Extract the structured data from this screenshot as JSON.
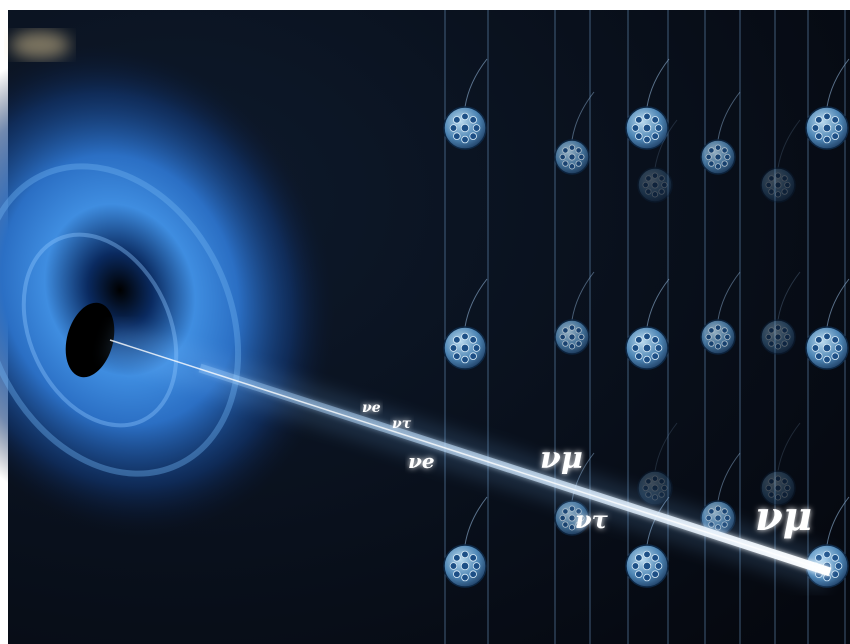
{
  "neutrino_labels": [
    "νe",
    "ντ",
    "νe",
    "νμ",
    "ντ",
    "νμ"
  ]
}
